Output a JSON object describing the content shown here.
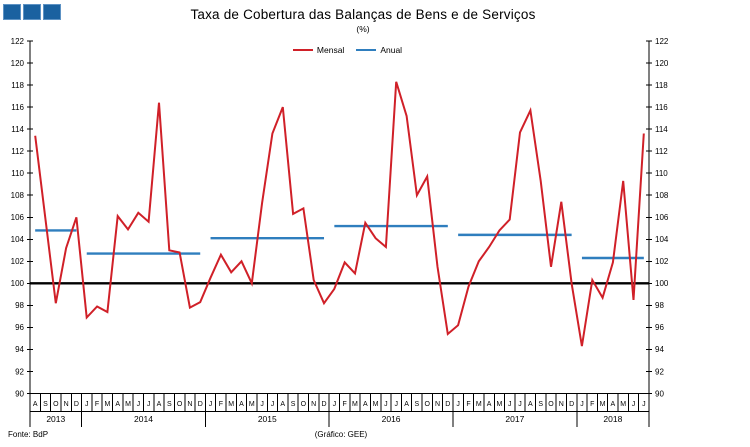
{
  "header": {
    "logo_color": "#1a61a0"
  },
  "footer": {
    "source": "Fonte: BdP",
    "credit": "(Gráfico: GEE)"
  },
  "chart_data": {
    "type": "line",
    "title": "Taxa de Cobertura das Balanças de Bens e de Serviços",
    "subtitle": "(%)",
    "legend": [
      {
        "label": "Mensal",
        "color": "#d02028"
      },
      {
        "label": "Anual",
        "color": "#2f7ebe"
      }
    ],
    "legend_position": "top-center",
    "grid": false,
    "y_axis": {
      "min": 90,
      "max": 122,
      "step": 2,
      "sides": [
        "left",
        "right"
      ]
    },
    "reference_line": {
      "value": 100,
      "color": "#000000"
    },
    "colors": {
      "monthly": "#d02028",
      "annual": "#2f7ebe",
      "axis": "#000000"
    },
    "years": [
      {
        "label": "2013",
        "months": [
          "A",
          "S",
          "O",
          "N",
          "D"
        ],
        "monthly": [
          113.4,
          105.8,
          98.2,
          103.2,
          106.0
        ],
        "annual": 104.8
      },
      {
        "label": "2014",
        "months": [
          "J",
          "F",
          "M",
          "A",
          "M",
          "J",
          "J",
          "A",
          "S",
          "O",
          "N",
          "D"
        ],
        "monthly": [
          96.9,
          97.9,
          97.4,
          106.1,
          104.9,
          106.4,
          105.6,
          116.4,
          103.0,
          102.8,
          97.8,
          98.3
        ],
        "annual": 102.7
      },
      {
        "label": "2015",
        "months": [
          "J",
          "F",
          "M",
          "A",
          "M",
          "J",
          "J",
          "A",
          "S",
          "O",
          "N",
          "D"
        ],
        "monthly": [
          100.5,
          102.6,
          101.0,
          102.0,
          100.0,
          107.3,
          113.6,
          116.0,
          106.3,
          106.8,
          100.3,
          98.2
        ],
        "annual": 104.1
      },
      {
        "label": "2016",
        "months": [
          "J",
          "F",
          "M",
          "A",
          "M",
          "J",
          "J",
          "A",
          "S",
          "O",
          "N",
          "D"
        ],
        "monthly": [
          99.5,
          101.9,
          100.9,
          105.5,
          104.1,
          103.3,
          118.3,
          115.2,
          108.0,
          109.7,
          101.5,
          95.4
        ],
        "annual": 105.2
      },
      {
        "label": "2017",
        "months": [
          "J",
          "F",
          "M",
          "A",
          "M",
          "J",
          "J",
          "A",
          "S",
          "O",
          "N",
          "D"
        ],
        "monthly": [
          96.2,
          99.7,
          102.0,
          103.3,
          104.8,
          105.8,
          113.7,
          115.7,
          109.3,
          101.5,
          107.4,
          100.0
        ],
        "annual": 104.4
      },
      {
        "label": "2018",
        "months": [
          "J",
          "F",
          "M",
          "A",
          "M",
          "J",
          "J"
        ],
        "monthly": [
          94.3,
          100.3,
          98.7,
          101.9,
          109.3,
          98.5,
          113.6
        ],
        "annual": 102.3
      }
    ]
  }
}
